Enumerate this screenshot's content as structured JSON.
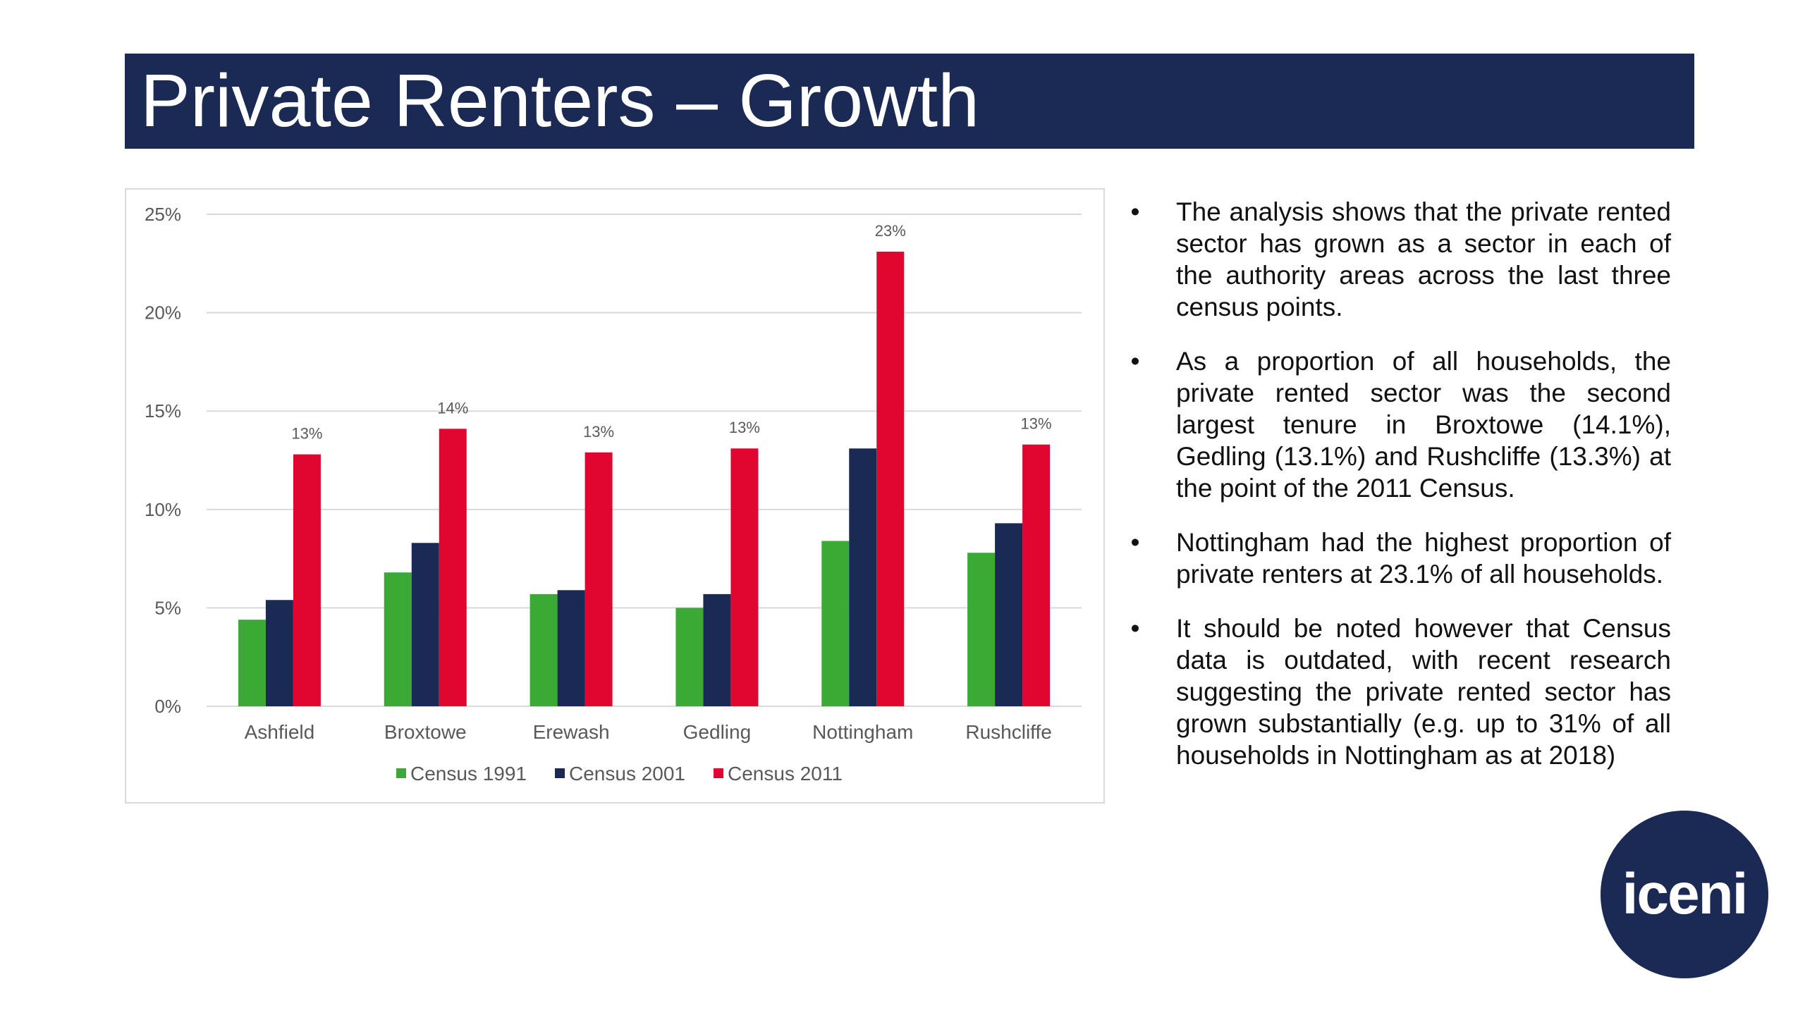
{
  "slide": {
    "title": "Private Renters – Growth",
    "logo": "iceni"
  },
  "bullets": [
    "The analysis shows that the private rented sector has grown as a sector in each of the authority areas across the last three census points.",
    "As a proportion of all households, the private rented sector was the second largest tenure in Broxtowe (14.1%), Gedling (13.1%) and Rushcliffe (13.3%) at the point of the 2011 Census.",
    "Nottingham had the highest proportion of private renters at 23.1% of all households.",
    "It should be noted however that Census data is outdated, with recent research suggesting the private rented sector has grown substantially (e.g. up to 31% of all households in Nottingham  as at 2018)"
  ],
  "bullet_marker": "•",
  "chart_data": {
    "type": "bar",
    "categories": [
      "Ashfield",
      "Broxtowe",
      "Erewash",
      "Gedling",
      "Nottingham",
      "Rushcliffe"
    ],
    "series": [
      {
        "name": "Census 1991",
        "color": "#3aaa35",
        "values": [
          4.4,
          6.8,
          5.7,
          5.0,
          8.4,
          7.8
        ]
      },
      {
        "name": "Census 2001",
        "color": "#1b2a55",
        "values": [
          5.4,
          8.3,
          5.9,
          5.7,
          13.1,
          9.3
        ]
      },
      {
        "name": "Census 2011",
        "color": "#e0062f",
        "values": [
          12.8,
          14.1,
          12.9,
          13.1,
          23.1,
          13.3
        ],
        "data_labels": [
          "13%",
          "14%",
          "13%",
          "13%",
          "23%",
          "13%"
        ]
      }
    ],
    "y_ticks": [
      "0%",
      "5%",
      "10%",
      "15%",
      "20%",
      "25%"
    ],
    "ylim": [
      0,
      25
    ],
    "grid": true,
    "legend": "bottom"
  },
  "colors": {
    "title_bar": "#1b2a55",
    "logo": "#1b2a55",
    "gridline": "#d9d9d9",
    "axis_text": "#595959"
  }
}
